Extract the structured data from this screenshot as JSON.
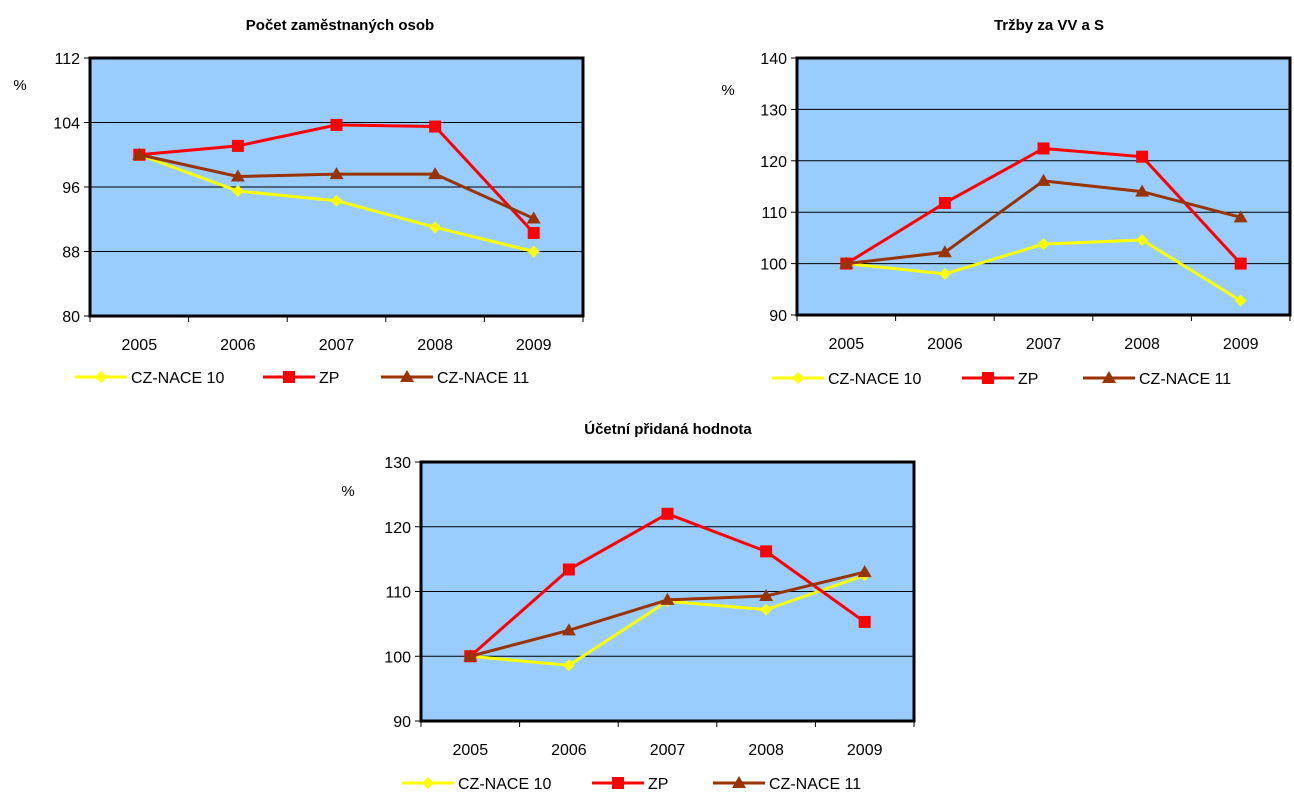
{
  "colors": {
    "plot_bg": "#99CCFF",
    "grid": "#000000",
    "frame": "#000000",
    "cz_nace_10": "#FFFF00",
    "zp": "#FF0000",
    "cz_nace_11": "#993300"
  },
  "chart_data": [
    {
      "type": "line",
      "title": "Počet zaměstnaných osob",
      "ylabel": "%",
      "xlabel": "",
      "categories": [
        "2005",
        "2006",
        "2007",
        "2008",
        "2009"
      ],
      "ylim": [
        80,
        112
      ],
      "yticks": [
        80,
        88,
        96,
        104,
        112
      ],
      "ytick_labels": [
        "80",
        "88",
        "96",
        "104",
        "112"
      ],
      "grid": true,
      "legend": "bottom",
      "series": [
        {
          "name": "CZ-NACE 10",
          "marker": "diamond",
          "values": [
            100,
            95.5,
            94.3,
            91.0,
            88.0
          ]
        },
        {
          "name": "ZP",
          "marker": "square",
          "values": [
            100,
            101.1,
            103.7,
            103.5,
            90.3
          ]
        },
        {
          "name": "CZ-NACE 11",
          "marker": "triangle",
          "values": [
            100,
            97.3,
            97.6,
            97.6,
            92.1
          ]
        }
      ]
    },
    {
      "type": "line",
      "title": "Tržby za VV a S",
      "ylabel": "%",
      "xlabel": "",
      "categories": [
        "2005",
        "2006",
        "2007",
        "2008",
        "2009"
      ],
      "ylim": [
        90,
        140
      ],
      "yticks": [
        90,
        100,
        110,
        120,
        130,
        140
      ],
      "ytick_labels": [
        "90",
        "100",
        "110",
        "120",
        "130",
        "140"
      ],
      "grid": true,
      "legend": "bottom",
      "series": [
        {
          "name": "CZ-NACE 10",
          "marker": "diamond",
          "values": [
            100,
            98.0,
            103.8,
            104.6,
            92.8
          ]
        },
        {
          "name": "ZP",
          "marker": "square",
          "values": [
            100,
            111.8,
            122.4,
            120.8,
            100.0
          ]
        },
        {
          "name": "CZ-NACE 11",
          "marker": "triangle",
          "values": [
            100,
            102.2,
            116.1,
            114.0,
            109.0
          ]
        }
      ]
    },
    {
      "type": "line",
      "title": "Účetní přidaná hodnota",
      "ylabel": "%",
      "xlabel": "",
      "categories": [
        "2005",
        "2006",
        "2007",
        "2008",
        "2009"
      ],
      "ylim": [
        90,
        130
      ],
      "yticks": [
        90,
        100,
        110,
        120,
        130
      ],
      "ytick_labels": [
        "90",
        "100",
        "110",
        "120",
        "130"
      ],
      "grid": true,
      "legend": "bottom",
      "series": [
        {
          "name": "CZ-NACE 10",
          "marker": "diamond",
          "values": [
            100,
            98.6,
            108.5,
            107.2,
            112.5
          ]
        },
        {
          "name": "ZP",
          "marker": "square",
          "values": [
            100,
            113.4,
            122.0,
            116.2,
            105.3
          ]
        },
        {
          "name": "CZ-NACE 11",
          "marker": "triangle",
          "values": [
            100,
            104.0,
            108.7,
            109.3,
            113.0
          ]
        }
      ]
    }
  ]
}
